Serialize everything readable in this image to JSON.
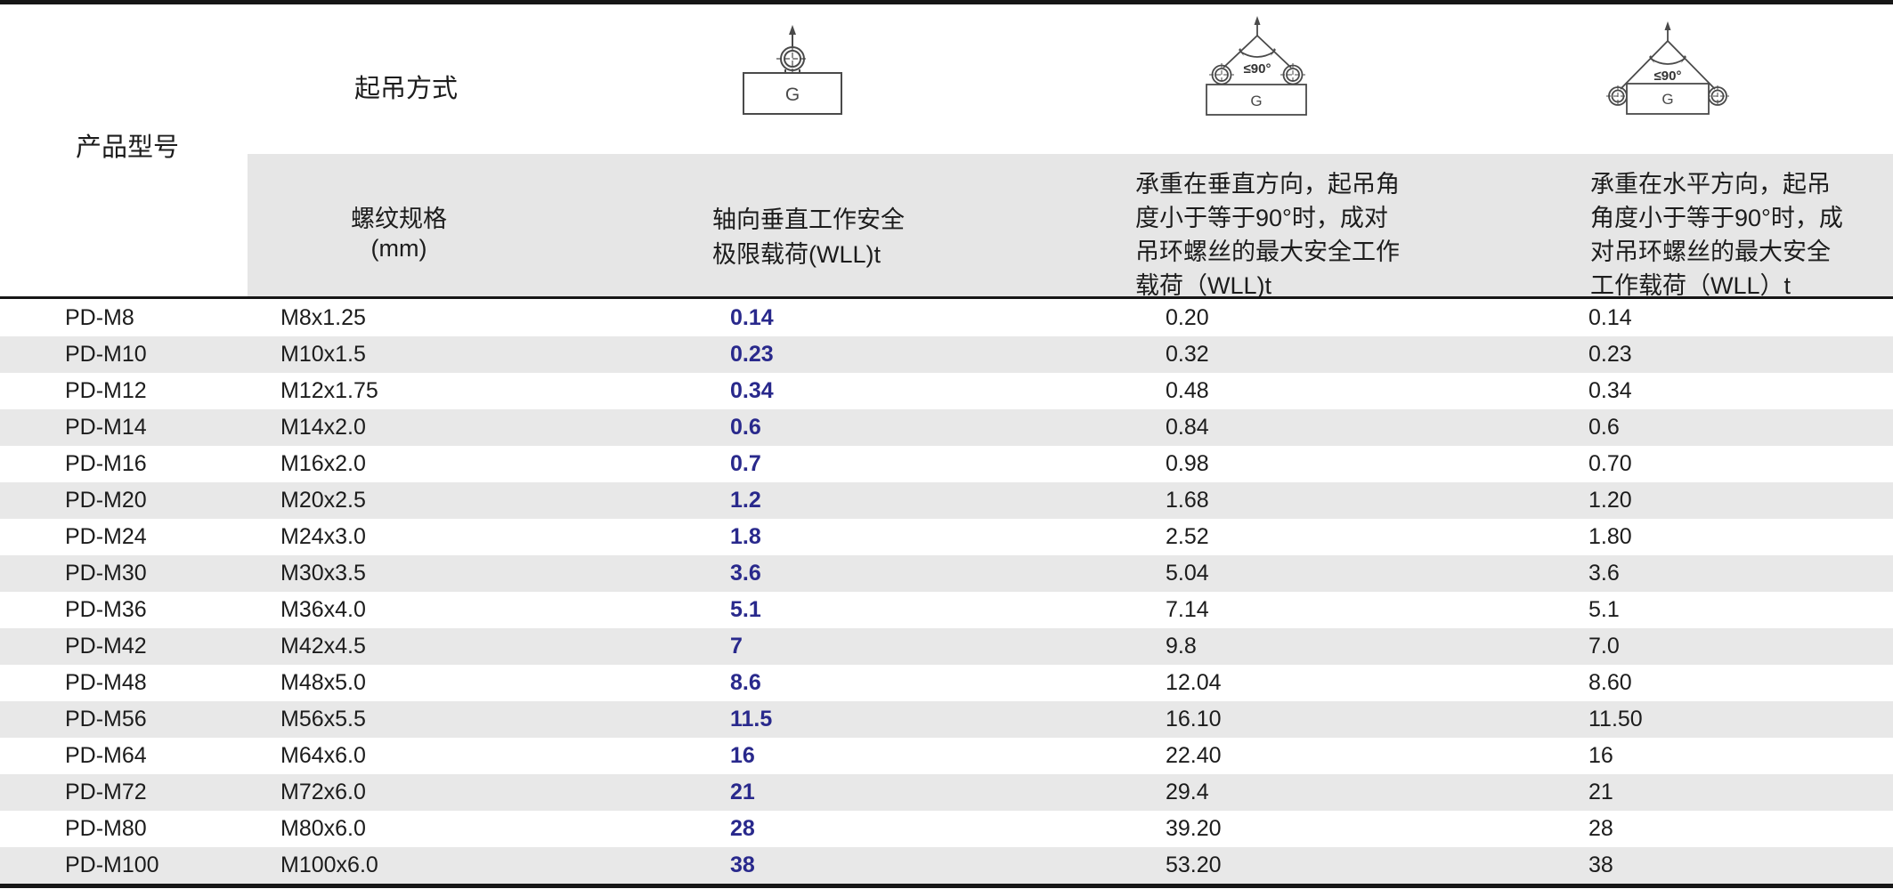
{
  "header": {
    "product_model_label": "产品型号",
    "lifting_method_label": "起吊方式",
    "icons": {
      "single_vertical": {
        "load_label": "G"
      },
      "pair_vertical": {
        "load_label": "G",
        "angle_label": "≤90°"
      },
      "pair_horizontal": {
        "load_label": "G",
        "angle_label": "≤90°"
      }
    },
    "columns": {
      "thread_spec": "螺纹规格\n(mm)",
      "axial_wll": "轴向垂直工作安全\n极限载荷(WLL)t",
      "vertical_pair_wll": "承重在垂直方向，起吊角\n度小于等于90°时，成对\n吊环螺丝的最大安全工作\n载荷（WLL)t",
      "horizontal_pair_wll": "承重在水平方向，起吊\n角度小于等于90°时，成\n对吊环螺丝的最大安全\n工作载荷（WLL）t"
    }
  },
  "table": {
    "rows": [
      {
        "model": "PD-M8",
        "thread": "M8x1.25",
        "axial_wll": "0.14",
        "vertical_pair_wll": "0.20",
        "horizontal_pair_wll": "0.14"
      },
      {
        "model": "PD-M10",
        "thread": "M10x1.5",
        "axial_wll": "0.23",
        "vertical_pair_wll": "0.32",
        "horizontal_pair_wll": "0.23"
      },
      {
        "model": "PD-M12",
        "thread": "M12x1.75",
        "axial_wll": "0.34",
        "vertical_pair_wll": "0.48",
        "horizontal_pair_wll": "0.34"
      },
      {
        "model": "PD-M14",
        "thread": "M14x2.0",
        "axial_wll": "0.6",
        "vertical_pair_wll": "0.84",
        "horizontal_pair_wll": "0.6"
      },
      {
        "model": "PD-M16",
        "thread": "M16x2.0",
        "axial_wll": "0.7",
        "vertical_pair_wll": "0.98",
        "horizontal_pair_wll": "0.70"
      },
      {
        "model": "PD-M20",
        "thread": "M20x2.5",
        "axial_wll": "1.2",
        "vertical_pair_wll": "1.68",
        "horizontal_pair_wll": "1.20"
      },
      {
        "model": "PD-M24",
        "thread": "M24x3.0",
        "axial_wll": "1.8",
        "vertical_pair_wll": "2.52",
        "horizontal_pair_wll": "1.80"
      },
      {
        "model": "PD-M30",
        "thread": "M30x3.5",
        "axial_wll": "3.6",
        "vertical_pair_wll": "5.04",
        "horizontal_pair_wll": "3.6"
      },
      {
        "model": "PD-M36",
        "thread": "M36x4.0",
        "axial_wll": "5.1",
        "vertical_pair_wll": "7.14",
        "horizontal_pair_wll": "5.1"
      },
      {
        "model": "PD-M42",
        "thread": "M42x4.5",
        "axial_wll": "7",
        "vertical_pair_wll": "9.8",
        "horizontal_pair_wll": "7.0"
      },
      {
        "model": "PD-M48",
        "thread": "M48x5.0",
        "axial_wll": "8.6",
        "vertical_pair_wll": "12.04",
        "horizontal_pair_wll": "8.60"
      },
      {
        "model": "PD-M56",
        "thread": "M56x5.5",
        "axial_wll": "11.5",
        "vertical_pair_wll": "16.10",
        "horizontal_pair_wll": "11.50"
      },
      {
        "model": "PD-M64",
        "thread": "M64x6.0",
        "axial_wll": "16",
        "vertical_pair_wll": "22.40",
        "horizontal_pair_wll": "16"
      },
      {
        "model": "PD-M72",
        "thread": "M72x6.0",
        "axial_wll": "21",
        "vertical_pair_wll": "29.4",
        "horizontal_pair_wll": "21"
      },
      {
        "model": "PD-M80",
        "thread": "M80x6.0",
        "axial_wll": "28",
        "vertical_pair_wll": "39.20",
        "horizontal_pair_wll": "28"
      },
      {
        "model": "PD-M100",
        "thread": "M100x6.0",
        "axial_wll": "38",
        "vertical_pair_wll": "53.20",
        "horizontal_pair_wll": "38"
      }
    ]
  },
  "colors": {
    "accent_blue": "#29298C",
    "stripe_gray": "#E8E8E8",
    "header_gray": "#E6E6E6",
    "line_dark": "#161616"
  }
}
